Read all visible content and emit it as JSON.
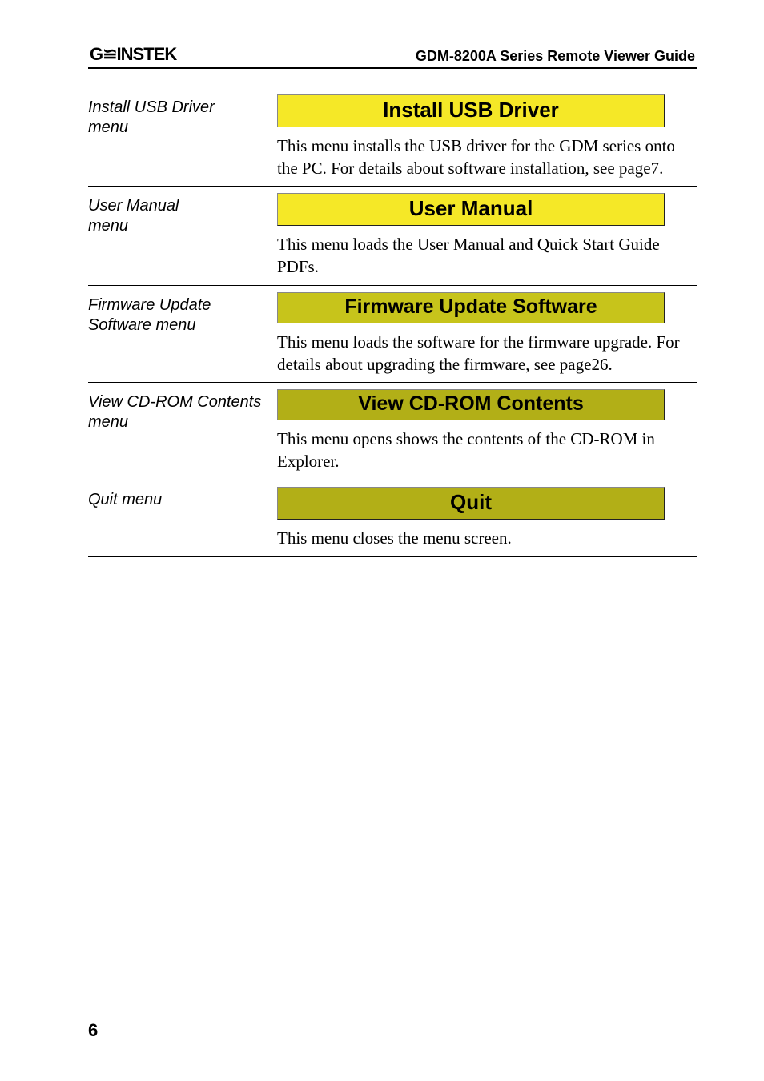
{
  "header": {
    "brand_text": "G≌INSTEK",
    "guide_title": "GDM-8200A Series Remote Viewer Guide"
  },
  "rows": [
    {
      "label": "Install USB Driver\nmenu",
      "button": {
        "text": "Install USB Driver",
        "bg": "#f5e827",
        "fg": "#000000",
        "font_size": 26
      },
      "desc": "This menu installs the USB driver for the GDM series onto the PC. For details about software installation, see page7."
    },
    {
      "label": "User Manual\nmenu",
      "button": {
        "text": "User Manual",
        "bg": "#f5e827",
        "fg": "#000000",
        "font_size": 26
      },
      "desc": "This menu loads the User Manual and Quick Start Guide PDFs."
    },
    {
      "label": "Firmware Update Software menu",
      "button": {
        "text": "Firmware Update Software",
        "bg": "#c7c41b",
        "fg": "#000000",
        "font_size": 25
      },
      "desc": "This menu loads the software for the firmware upgrade. For details about upgrading the firmware, see page26."
    },
    {
      "label": "View CD-ROM Contents menu",
      "button": {
        "text": "View CD-ROM Contents",
        "bg": "#b2af17",
        "fg": "#000000",
        "font_size": 25
      },
      "desc": "This menu opens shows the contents of the CD-ROM in Explorer."
    },
    {
      "label": "Quit menu",
      "button": {
        "text": "Quit",
        "bg": "#b2af17",
        "fg": "#000000",
        "font_size": 26
      },
      "desc": "This menu closes the menu screen."
    }
  ],
  "page_number": "6",
  "colors": {
    "page_bg": "#ffffff",
    "text": "#000000",
    "rule": "#000000"
  }
}
